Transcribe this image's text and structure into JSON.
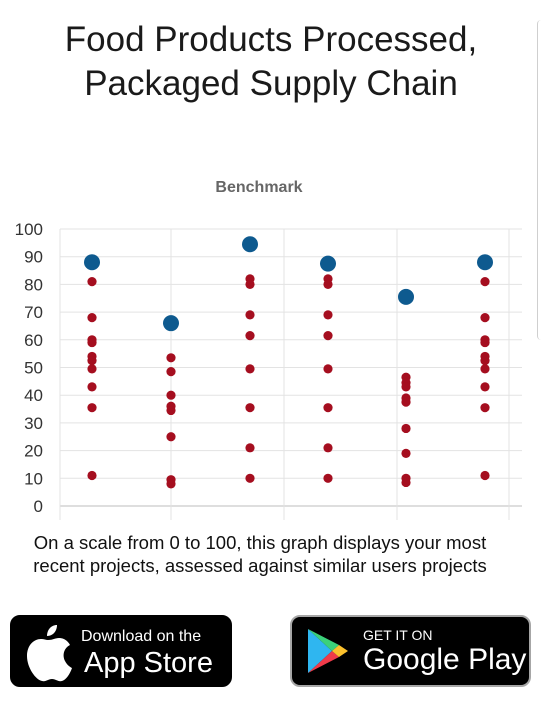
{
  "page": {
    "title_lines": [
      "Food Products Processed,",
      "Packaged Supply Chain"
    ],
    "caption_lines": [
      "On a scale from 0 to 100, this graph displays your most",
      "recent projects, assessed against similar users projects"
    ]
  },
  "chart_data": {
    "type": "scatter",
    "title": "Benchmark",
    "xlabel": "",
    "ylabel": "",
    "ylim": [
      0,
      100
    ],
    "yticks": [
      0,
      10,
      20,
      30,
      40,
      50,
      60,
      70,
      80,
      90,
      100
    ],
    "grid": true,
    "legend": "none",
    "columns": 6,
    "series": [
      {
        "role": "benchmark",
        "color": "#0e5a8f",
        "points": [
          {
            "column": 1,
            "y": 88
          },
          {
            "column": 2,
            "y": 66
          },
          {
            "column": 3,
            "y": 94.5
          },
          {
            "column": 4,
            "y": 87.5
          },
          {
            "column": 5,
            "y": 75.5
          },
          {
            "column": 6,
            "y": 88
          }
        ]
      },
      {
        "role": "similar-projects",
        "color": "#a50e1f",
        "points": [
          {
            "column": 1,
            "y": 81
          },
          {
            "column": 1,
            "y": 68
          },
          {
            "column": 1,
            "y": 60
          },
          {
            "column": 1,
            "y": 59
          },
          {
            "column": 1,
            "y": 54
          },
          {
            "column": 1,
            "y": 52.5
          },
          {
            "column": 1,
            "y": 49.5
          },
          {
            "column": 1,
            "y": 43
          },
          {
            "column": 1,
            "y": 35.5
          },
          {
            "column": 1,
            "y": 11
          },
          {
            "column": 2,
            "y": 65
          },
          {
            "column": 2,
            "y": 53.5
          },
          {
            "column": 2,
            "y": 48.5
          },
          {
            "column": 2,
            "y": 40
          },
          {
            "column": 2,
            "y": 36
          },
          {
            "column": 2,
            "y": 34.5
          },
          {
            "column": 2,
            "y": 25
          },
          {
            "column": 2,
            "y": 9.5
          },
          {
            "column": 2,
            "y": 8
          },
          {
            "column": 3,
            "y": 82
          },
          {
            "column": 3,
            "y": 80
          },
          {
            "column": 3,
            "y": 69
          },
          {
            "column": 3,
            "y": 61.5
          },
          {
            "column": 3,
            "y": 49.5
          },
          {
            "column": 3,
            "y": 35.5
          },
          {
            "column": 3,
            "y": 21
          },
          {
            "column": 3,
            "y": 10
          },
          {
            "column": 4,
            "y": 82
          },
          {
            "column": 4,
            "y": 80
          },
          {
            "column": 4,
            "y": 69
          },
          {
            "column": 4,
            "y": 61.5
          },
          {
            "column": 4,
            "y": 49.5
          },
          {
            "column": 4,
            "y": 35.5
          },
          {
            "column": 4,
            "y": 21
          },
          {
            "column": 4,
            "y": 10
          },
          {
            "column": 5,
            "y": 46.5
          },
          {
            "column": 5,
            "y": 44.5
          },
          {
            "column": 5,
            "y": 43
          },
          {
            "column": 5,
            "y": 39
          },
          {
            "column": 5,
            "y": 37.5
          },
          {
            "column": 5,
            "y": 28
          },
          {
            "column": 5,
            "y": 19
          },
          {
            "column": 5,
            "y": 10
          },
          {
            "column": 5,
            "y": 8.5
          },
          {
            "column": 6,
            "y": 81
          },
          {
            "column": 6,
            "y": 68
          },
          {
            "column": 6,
            "y": 60
          },
          {
            "column": 6,
            "y": 59
          },
          {
            "column": 6,
            "y": 54
          },
          {
            "column": 6,
            "y": 52.5
          },
          {
            "column": 6,
            "y": 49.5
          },
          {
            "column": 6,
            "y": 43
          },
          {
            "column": 6,
            "y": 35.5
          },
          {
            "column": 6,
            "y": 11
          }
        ]
      }
    ]
  },
  "badges": {
    "app_store": {
      "small": "Download on the",
      "big": "App Store",
      "icon": "apple-icon"
    },
    "google_play": {
      "small": "GET IT ON",
      "big": "Google Play",
      "icon": "google-play-icon"
    }
  }
}
